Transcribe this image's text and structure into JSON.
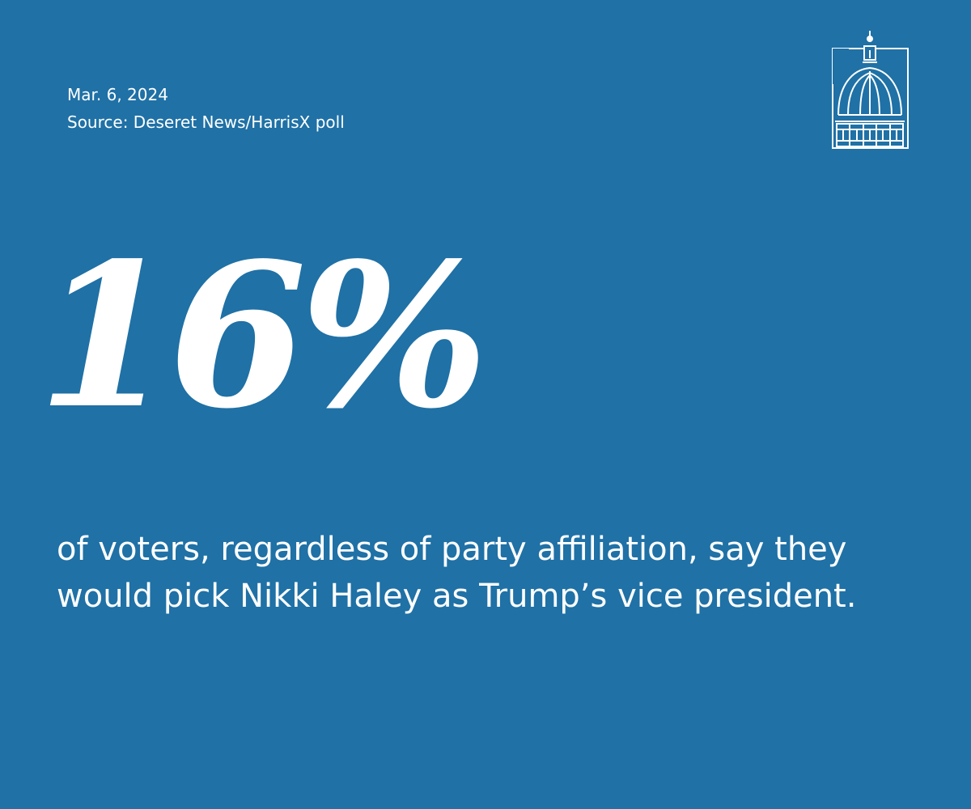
{
  "header": {
    "date": "Mar. 6, 2024",
    "source": "Source: Deseret News/HarrisX poll"
  },
  "logo": {
    "icon": "capitol-dome-icon"
  },
  "stat": {
    "value": "16%"
  },
  "caption": {
    "line1": "of voters, regardless of party affiliation, say they",
    "line2": "would pick Nikki Haley as Trump’s vice president."
  },
  "colors": {
    "background": "#1f71a6",
    "text": "#ffffff"
  }
}
